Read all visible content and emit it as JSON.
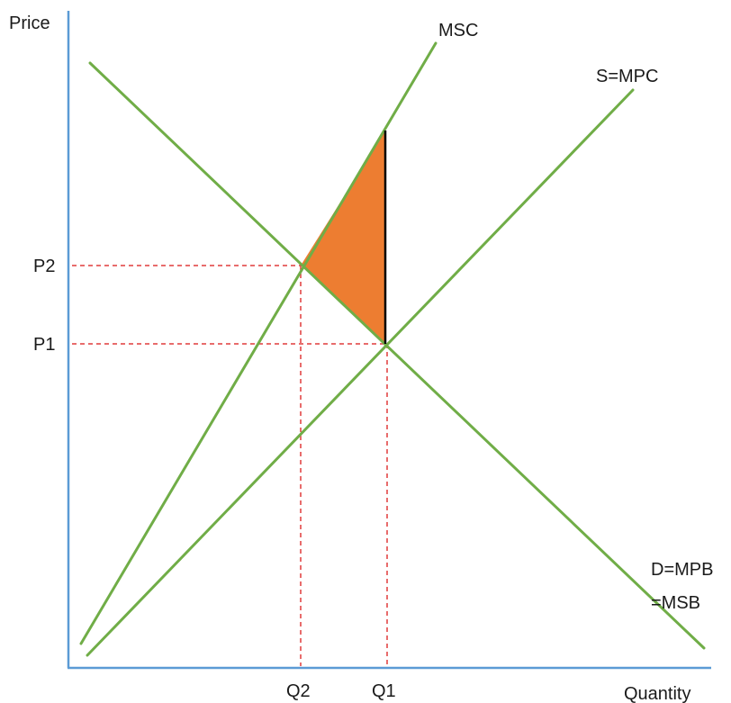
{
  "axes": {
    "y_label": "Price",
    "x_label": "Quantity"
  },
  "curves": {
    "msc": "MSC",
    "supply": "S=MPC",
    "demand_line1": "D=MPB",
    "demand_line2": "=MSB"
  },
  "ticks": {
    "p2": "P2",
    "p1": "P1",
    "q2": "Q2",
    "q1": "Q1"
  },
  "colors": {
    "axis": "#5b9bd5",
    "curve": "#70ad47",
    "welfare_loss": "#ed7d31",
    "guide": "#e03c3c",
    "vertical_gap": "#000000"
  }
}
